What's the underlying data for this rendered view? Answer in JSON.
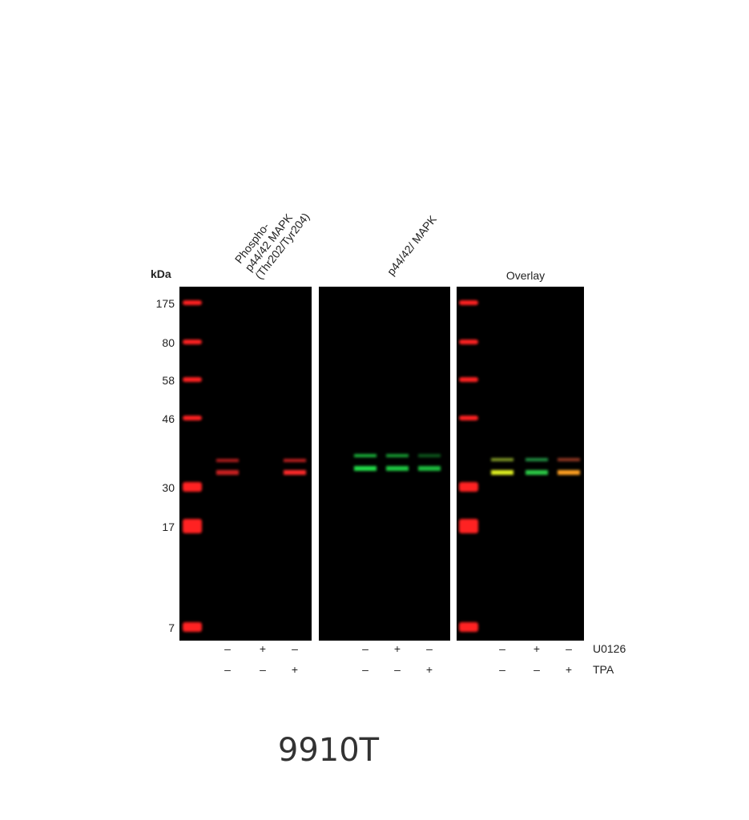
{
  "figure": {
    "units_label": "kDa",
    "markers": [
      "175",
      "80",
      "58",
      "46",
      "30",
      "17",
      "7"
    ],
    "panels": [
      {
        "title_lines": [
          "Phospho-",
          "p44/42 MAPK",
          "(Thr202/Tyr204)"
        ],
        "channel_color": "#ff2020"
      },
      {
        "title_lines": [
          "p44/42/ MAPK"
        ],
        "channel_color": "#20e040"
      },
      {
        "title_lines": [
          "Overlay"
        ],
        "channel_color": "#ffd020"
      }
    ],
    "treatments": [
      {
        "name": "U0126",
        "lanes": [
          "–",
          "+",
          "–"
        ]
      },
      {
        "name": "TPA",
        "lanes": [
          "–",
          "–",
          "+"
        ]
      }
    ],
    "caption": "9910T"
  }
}
